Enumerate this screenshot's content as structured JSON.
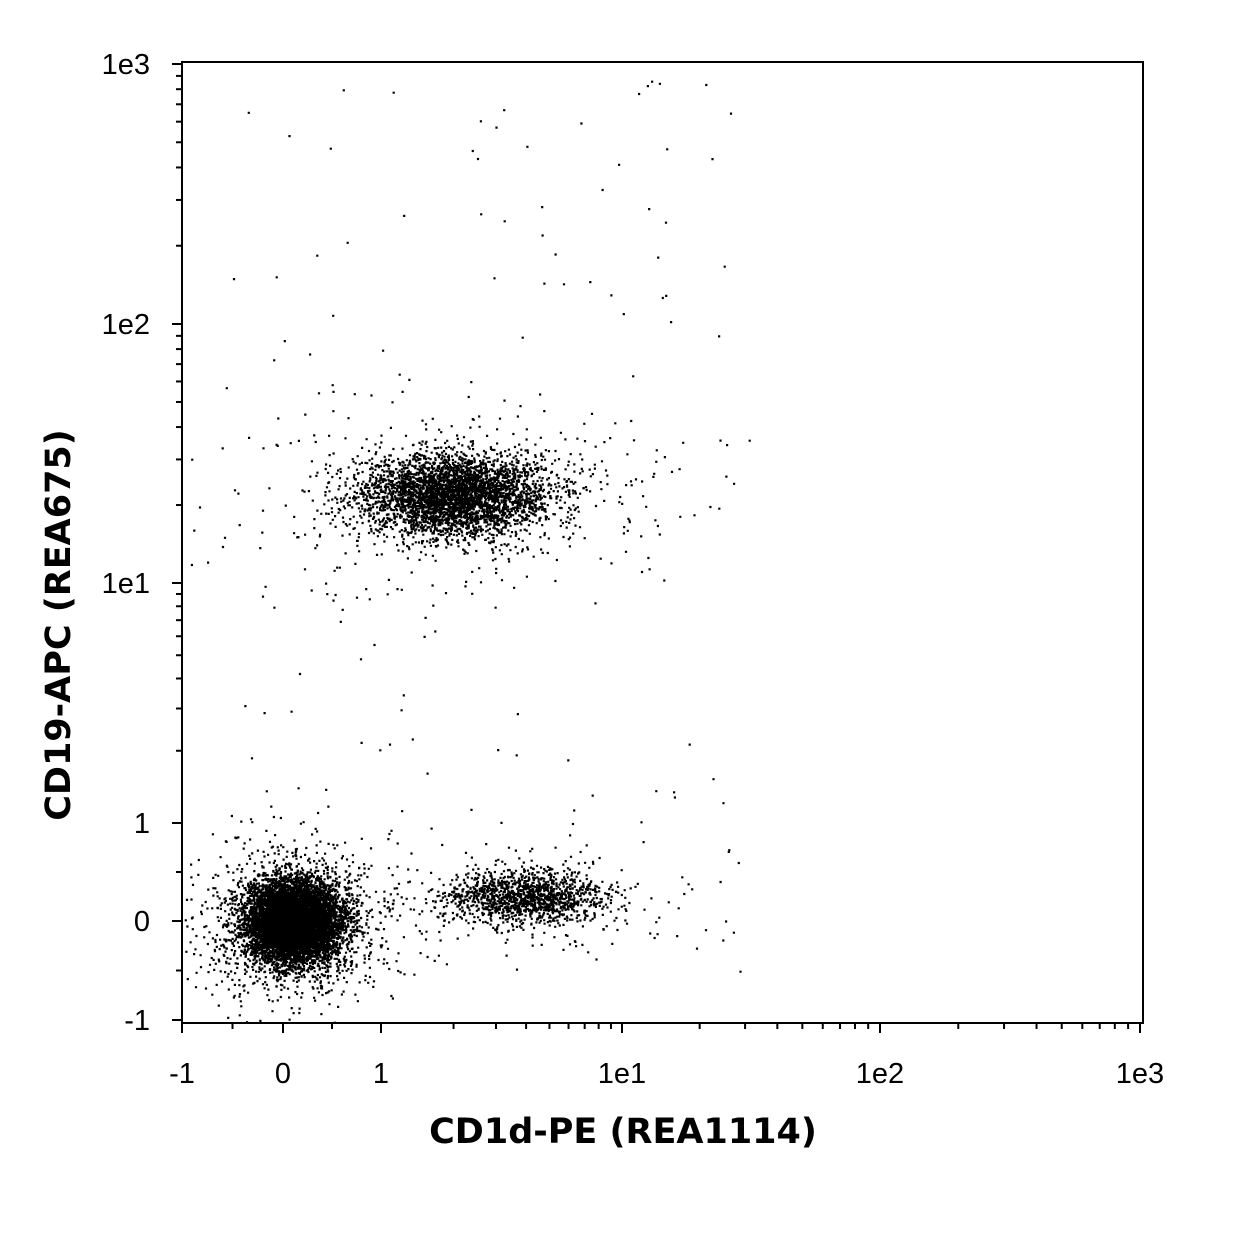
{
  "chart_data": {
    "type": "scatter",
    "title": "",
    "xlabel": "CD1d-PE (REA1114)",
    "ylabel": "CD19-APC (REA675)",
    "x_scale": "biexponential",
    "y_scale": "biexponential",
    "xlim": [
      -1,
      1000
    ],
    "ylim": [
      -1,
      1000
    ],
    "x_ticks": [
      {
        "value": -1,
        "label": "-1"
      },
      {
        "value": 0,
        "label": "0"
      },
      {
        "value": 1,
        "label": "1"
      },
      {
        "value": 10,
        "label": "1e1"
      },
      {
        "value": 100,
        "label": "1e2"
      },
      {
        "value": 1000,
        "label": "1e3"
      }
    ],
    "y_ticks": [
      {
        "value": -1,
        "label": "-1"
      },
      {
        "value": 0,
        "label": "0"
      },
      {
        "value": 1,
        "label": "1"
      },
      {
        "value": 10,
        "label": "1e1"
      },
      {
        "value": 100,
        "label": "1e2"
      },
      {
        "value": 1000,
        "label": "1e3"
      }
    ],
    "grid": false,
    "legend": "none",
    "point_color": "#000000",
    "populations": [
      {
        "x_center": 0.1,
        "y_center": 0.0,
        "x_spread": 0.35,
        "y_spread": 0.3,
        "density": "very high"
      },
      {
        "x_center": 2.0,
        "y_center": 22,
        "x_spread": 0.7,
        "y_spread": 0.3,
        "density": "high"
      },
      {
        "x_center": 4.0,
        "y_center": 0.25,
        "x_spread": 0.6,
        "y_spread": 0.2,
        "density": "medium"
      }
    ]
  }
}
